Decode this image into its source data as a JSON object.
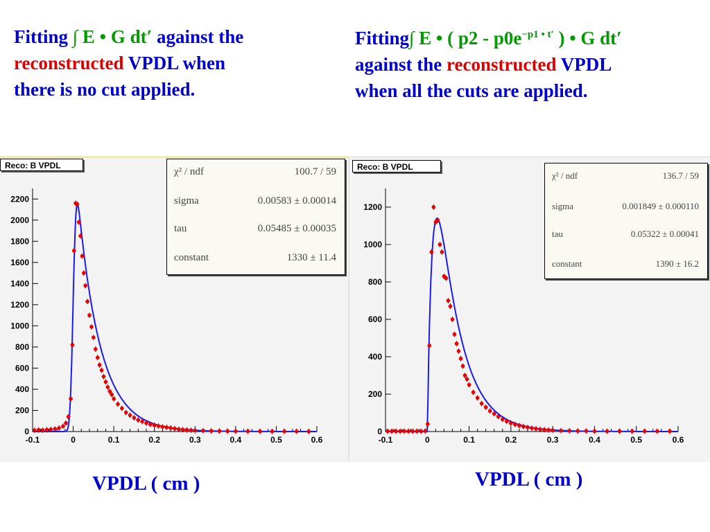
{
  "captions": {
    "left": {
      "fitting": "Fitting",
      "integral": "∫ E • G dt′",
      "against": "against the",
      "reconstructed": "reconstructed",
      "vpdl_when": "VPDL when",
      "rest": "there is no cut applied."
    },
    "right": {
      "fitting": "Fitting",
      "formula_a": "∫ E • ( p2 - p0e",
      "formula_sup": "−p1 • t′",
      "formula_b": " ) • G dt′",
      "against": "against the",
      "reconstructed": "reconstructed",
      "vpdl": "VPDL",
      "rest": "when all the cuts are applied."
    }
  },
  "axis_titles": {
    "left": "VPDL ( cm )",
    "right": "VPDL ( cm )"
  },
  "colors": {
    "data_points": "#ee0000",
    "fit_line": "#1a1aee",
    "caption_blue": "#0000cc",
    "caption_green": "#009900",
    "caption_red": "#dd0000"
  },
  "chart_data": [
    {
      "type": "scatter",
      "title": "Reco: B VPDL",
      "xlabel": "VPDL ( cm )",
      "xlim": [
        -0.1,
        0.6
      ],
      "ylim": [
        0,
        2300
      ],
      "x_ticks": [
        "-0.1",
        "0",
        "0.1",
        "0.2",
        "0.3",
        "0.4",
        "0.5",
        "0.6"
      ],
      "y_ticks": [
        "0",
        "200",
        "400",
        "600",
        "800",
        "1000",
        "1200",
        "1400",
        "1600",
        "1800",
        "2000",
        "2200"
      ],
      "grid": false,
      "stats": {
        "chi2_label": "χ² / ndf",
        "chi2_value": "100.7 / 59",
        "params": [
          {
            "name": "sigma",
            "value": "0.00583 ± 0.00014"
          },
          {
            "name": "tau",
            "value": "0.05485 ± 0.00035"
          },
          {
            "name": "constant",
            "value": "1330 ± 11.4"
          }
        ]
      },
      "fit": {
        "sigma": 0.00583,
        "tau": 0.05485,
        "peak": 2150
      },
      "series": [
        {
          "type": "points",
          "values": [
            [
              -0.095,
              12
            ],
            [
              -0.085,
              15
            ],
            [
              -0.075,
              13
            ],
            [
              -0.065,
              17
            ],
            [
              -0.055,
              20
            ],
            [
              -0.045,
              25
            ],
            [
              -0.035,
              33
            ],
            [
              -0.025,
              50
            ],
            [
              -0.018,
              80
            ],
            [
              -0.012,
              140
            ],
            [
              -0.006,
              310
            ],
            [
              -0.002,
              820
            ],
            [
              0.002,
              1710
            ],
            [
              0.006,
              2160
            ],
            [
              0.01,
              2150
            ],
            [
              0.014,
              1980
            ],
            [
              0.018,
              1850
            ],
            [
              0.022,
              1660
            ],
            [
              0.026,
              1500
            ],
            [
              0.03,
              1380
            ],
            [
              0.035,
              1230
            ],
            [
              0.04,
              1100
            ],
            [
              0.045,
              990
            ],
            [
              0.05,
              890
            ],
            [
              0.055,
              780
            ],
            [
              0.06,
              700
            ],
            [
              0.065,
              630
            ],
            [
              0.07,
              580
            ],
            [
              0.075,
              520
            ],
            [
              0.08,
              470
            ],
            [
              0.085,
              420
            ],
            [
              0.09,
              380
            ],
            [
              0.095,
              350
            ],
            [
              0.1,
              310
            ],
            [
              0.11,
              260
            ],
            [
              0.12,
              220
            ],
            [
              0.13,
              180
            ],
            [
              0.14,
              155
            ],
            [
              0.15,
              130
            ],
            [
              0.16,
              110
            ],
            [
              0.17,
              95
            ],
            [
              0.18,
              80
            ],
            [
              0.19,
              68
            ],
            [
              0.2,
              60
            ],
            [
              0.21,
              52
            ],
            [
              0.22,
              45
            ],
            [
              0.23,
              40
            ],
            [
              0.24,
              34
            ],
            [
              0.25,
              28
            ],
            [
              0.26,
              22
            ],
            [
              0.27,
              18
            ],
            [
              0.28,
              15
            ],
            [
              0.29,
              12
            ],
            [
              0.3,
              10
            ],
            [
              0.32,
              8
            ],
            [
              0.34,
              6
            ],
            [
              0.36,
              5
            ],
            [
              0.38,
              4
            ],
            [
              0.4,
              3
            ],
            [
              0.43,
              3
            ],
            [
              0.46,
              2
            ],
            [
              0.49,
              2
            ],
            [
              0.52,
              2
            ],
            [
              0.55,
              2
            ],
            [
              0.58,
              1
            ]
          ]
        }
      ]
    },
    {
      "type": "scatter",
      "title": "Reco: B VPDL",
      "xlabel": "VPDL ( cm )",
      "xlim": [
        -0.1,
        0.6
      ],
      "ylim": [
        0,
        1300
      ],
      "x_ticks": [
        "-0.1",
        "0",
        "0.1",
        "0.2",
        "0.3",
        "0.4",
        "0.5",
        "0.6"
      ],
      "y_ticks": [
        "0",
        "200",
        "400",
        "600",
        "800",
        "1000",
        "1200"
      ],
      "grid": false,
      "stats": {
        "chi2_label": "χ² / ndf",
        "chi2_value": "136.7 / 59",
        "params": [
          {
            "name": "sigma",
            "value": "0.001849 ± 0.000110"
          },
          {
            "name": "tau",
            "value": "0.05322 ± 0.00041"
          },
          {
            "name": "constant",
            "value": "1390 ± 16.2"
          }
        ]
      },
      "fit": {
        "sigma": 0.00185,
        "tau": 0.05322,
        "peak": 1140,
        "rise": 0.016
      },
      "series": [
        {
          "type": "points",
          "values": [
            [
              -0.095,
              2
            ],
            [
              -0.085,
              2
            ],
            [
              -0.075,
              2
            ],
            [
              -0.065,
              2
            ],
            [
              -0.055,
              2
            ],
            [
              -0.045,
              2
            ],
            [
              -0.035,
              2
            ],
            [
              -0.025,
              2
            ],
            [
              -0.015,
              2
            ],
            [
              -0.005,
              3
            ],
            [
              0.001,
              40
            ],
            [
              0.005,
              460
            ],
            [
              0.01,
              960
            ],
            [
              0.015,
              1200
            ],
            [
              0.02,
              1120
            ],
            [
              0.025,
              1130
            ],
            [
              0.03,
              1000
            ],
            [
              0.035,
              960
            ],
            [
              0.04,
              830
            ],
            [
              0.045,
              820
            ],
            [
              0.05,
              700
            ],
            [
              0.055,
              670
            ],
            [
              0.06,
              600
            ],
            [
              0.065,
              520
            ],
            [
              0.07,
              470
            ],
            [
              0.075,
              430
            ],
            [
              0.08,
              390
            ],
            [
              0.085,
              350
            ],
            [
              0.09,
              300
            ],
            [
              0.095,
              280
            ],
            [
              0.1,
              250
            ],
            [
              0.11,
              210
            ],
            [
              0.12,
              180
            ],
            [
              0.13,
              150
            ],
            [
              0.14,
              130
            ],
            [
              0.15,
              110
            ],
            [
              0.16,
              95
            ],
            [
              0.17,
              80
            ],
            [
              0.18,
              65
            ],
            [
              0.19,
              55
            ],
            [
              0.2,
              45
            ],
            [
              0.21,
              38
            ],
            [
              0.22,
              32
            ],
            [
              0.23,
              27
            ],
            [
              0.24,
              22
            ],
            [
              0.25,
              18
            ],
            [
              0.26,
              15
            ],
            [
              0.27,
              12
            ],
            [
              0.28,
              10
            ],
            [
              0.29,
              8
            ],
            [
              0.3,
              7
            ],
            [
              0.32,
              5
            ],
            [
              0.34,
              4
            ],
            [
              0.36,
              3
            ],
            [
              0.38,
              3
            ],
            [
              0.4,
              2
            ],
            [
              0.43,
              2
            ],
            [
              0.46,
              2
            ],
            [
              0.49,
              2
            ],
            [
              0.52,
              2
            ],
            [
              0.55,
              2
            ],
            [
              0.58,
              2
            ]
          ]
        }
      ]
    }
  ]
}
